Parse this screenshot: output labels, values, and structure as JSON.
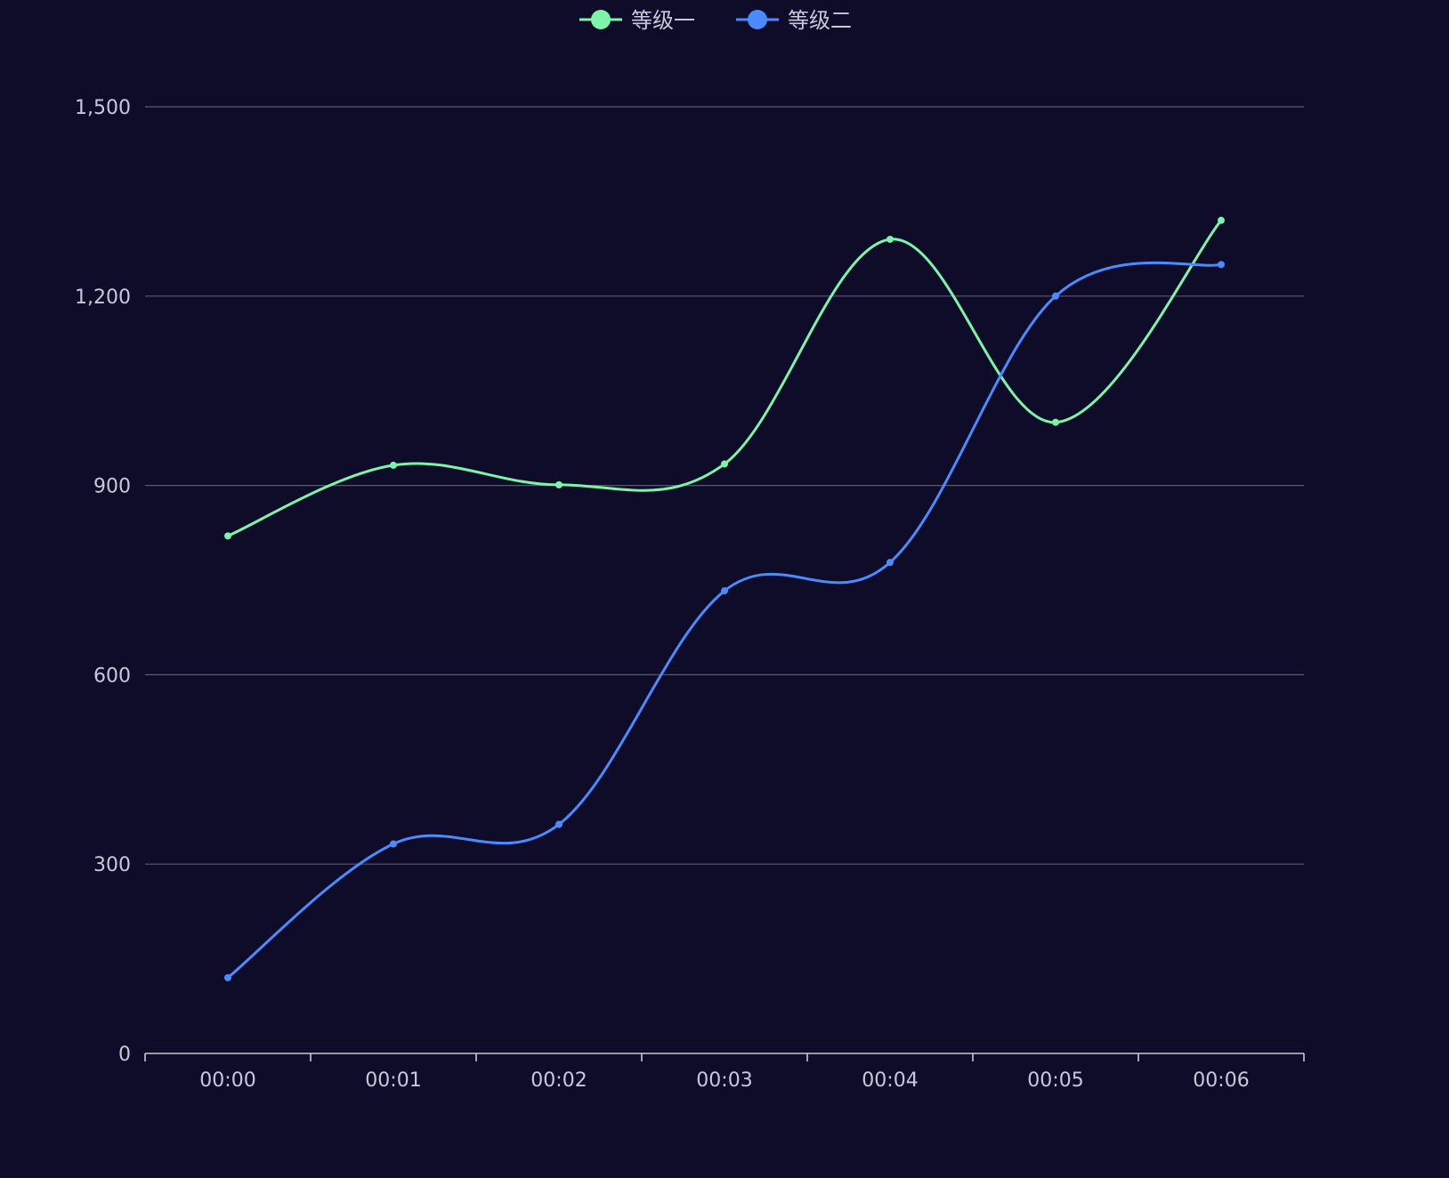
{
  "chart_data": {
    "type": "line",
    "smooth": true,
    "categories": [
      "00:00",
      "00:01",
      "00:02",
      "00:03",
      "00:04",
      "00:05",
      "00:06"
    ],
    "series": [
      {
        "name": "等级一",
        "color": "#7cf5a8",
        "values": [
          820,
          932,
          901,
          934,
          1290,
          1000,
          1320
        ]
      },
      {
        "name": "等级二",
        "color": "#4a8bff",
        "values": [
          120,
          332,
          363,
          733,
          778,
          1200,
          1250
        ]
      }
    ],
    "ylim": [
      0,
      1500
    ],
    "yticks": [
      0,
      300,
      600,
      900,
      1200,
      1500
    ],
    "ytick_labels": [
      "0",
      "300",
      "600",
      "900",
      "1,200",
      "1,500"
    ],
    "grid": true,
    "legend": "top-center",
    "background": "#0f0c29"
  }
}
